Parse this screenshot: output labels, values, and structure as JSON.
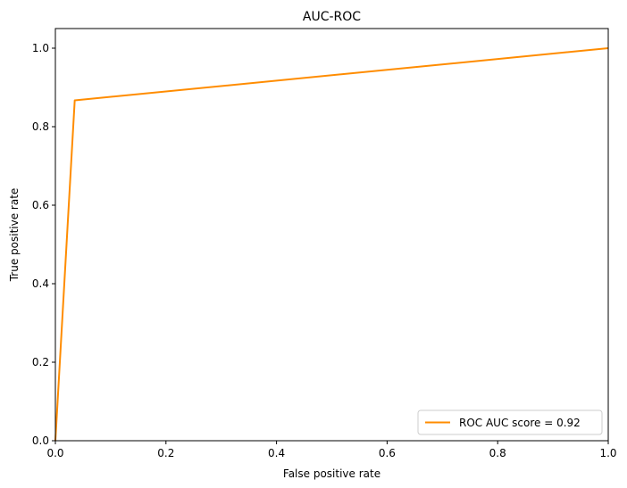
{
  "chart_data": {
    "type": "line",
    "title": "AUC-ROC",
    "xlabel": "False positive rate",
    "ylabel": "True positive rate",
    "xlim": [
      0,
      1
    ],
    "ylim": [
      0,
      1.05
    ],
    "xticks": [
      0.0,
      0.2,
      0.4,
      0.6,
      0.8,
      1.0
    ],
    "xtick_labels": [
      "0.0",
      "0.2",
      "0.4",
      "0.6",
      "0.8",
      "1.0"
    ],
    "yticks": [
      0.0,
      0.2,
      0.4,
      0.6,
      0.8,
      1.0
    ],
    "ytick_labels": [
      "0.0",
      "0.2",
      "0.4",
      "0.6",
      "0.8",
      "1.0"
    ],
    "grid": false,
    "legend_position": "bottom-right",
    "series": [
      {
        "name": "ROC AUC score = 0.92",
        "color": "#ff8c00",
        "x": [
          0.0,
          0.035,
          1.0
        ],
        "y": [
          0.0,
          0.867,
          1.0
        ]
      }
    ]
  }
}
